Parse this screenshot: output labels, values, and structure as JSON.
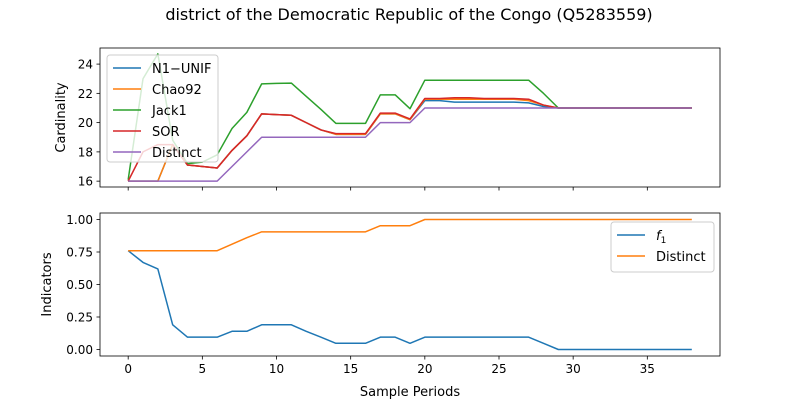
{
  "figure": {
    "title": "district of the Democratic Republic of the Congo (Q5283559)"
  },
  "chart_data": [
    {
      "type": "line",
      "xlabel": "",
      "ylabel": "Cardinality",
      "xlim": [
        -1.9,
        39.9
      ],
      "ylim": [
        15.6,
        25.1
      ],
      "xticks": [
        0,
        5,
        10,
        15,
        20,
        25,
        30,
        35
      ],
      "xtick_labels_visible": false,
      "yticks": [
        16,
        18,
        20,
        22,
        24
      ],
      "ytick_labels": [
        "16",
        "18",
        "20",
        "22",
        "24"
      ],
      "legend": "upper-left",
      "grid": false,
      "x": [
        0,
        1,
        2,
        3,
        4,
        5,
        6,
        7,
        8,
        9,
        10,
        11,
        12,
        13,
        14,
        15,
        16,
        17,
        18,
        19,
        20,
        21,
        22,
        23,
        24,
        25,
        26,
        27,
        28,
        29,
        30,
        31,
        32,
        33,
        34,
        35,
        36,
        37,
        38
      ],
      "series": [
        {
          "name": "N1−UNIF",
          "color": "#1f77b4",
          "values": [
            16,
            16,
            16,
            18.5,
            17.1,
            17.0,
            16.9,
            18.1,
            19.1,
            20.6,
            20.55,
            20.5,
            20.0,
            19.5,
            19.2,
            19.2,
            19.2,
            20.6,
            20.6,
            20.2,
            21.5,
            21.5,
            21.4,
            21.4,
            21.4,
            21.4,
            21.4,
            21.35,
            21.1,
            21.0,
            21.0,
            21.0,
            21.0,
            21.0,
            21.0,
            21.0,
            21.0,
            21.0,
            21.0
          ]
        },
        {
          "name": "Chao92",
          "color": "#ff7f0e",
          "values": [
            16,
            16,
            16,
            18.5,
            17.1,
            17.0,
            16.9,
            18.1,
            19.1,
            20.6,
            20.55,
            20.5,
            20.0,
            19.5,
            19.2,
            19.2,
            19.2,
            20.6,
            20.6,
            20.2,
            21.6,
            21.6,
            21.6,
            21.6,
            21.6,
            21.6,
            21.6,
            21.5,
            21.2,
            21.0,
            21.0,
            21.0,
            21.0,
            21.0,
            21.0,
            21.0,
            21.0,
            21.0,
            21.0
          ]
        },
        {
          "name": "Jack1",
          "color": "#2ca02c",
          "values": [
            16.1,
            23.0,
            24.7,
            18.8,
            17.2,
            17.3,
            17.8,
            19.6,
            20.7,
            22.65,
            22.68,
            22.7,
            21.8,
            20.9,
            19.95,
            19.95,
            19.95,
            21.9,
            21.9,
            20.95,
            22.9,
            22.9,
            22.9,
            22.9,
            22.9,
            22.9,
            22.9,
            22.9,
            22.0,
            21.0,
            21.0,
            21.0,
            21.0,
            21.0,
            21.0,
            21.0,
            21.0,
            21.0,
            21.0
          ]
        },
        {
          "name": "SOR",
          "color": "#d62728",
          "values": [
            16,
            18.0,
            18.5,
            18.5,
            17.1,
            17.0,
            16.9,
            18.1,
            19.1,
            20.6,
            20.55,
            20.5,
            20.0,
            19.5,
            19.25,
            19.25,
            19.25,
            20.65,
            20.65,
            20.25,
            21.65,
            21.65,
            21.7,
            21.7,
            21.65,
            21.65,
            21.65,
            21.6,
            21.2,
            21.0,
            21.0,
            21.0,
            21.0,
            21.0,
            21.0,
            21.0,
            21.0,
            21.0,
            21.0
          ]
        },
        {
          "name": "Distinct",
          "color": "#9467bd",
          "values": [
            16,
            16,
            16,
            16,
            16,
            16,
            16,
            17,
            18,
            19,
            19,
            19,
            19,
            19,
            19,
            19,
            19,
            20,
            20,
            20,
            21,
            21,
            21,
            21,
            21,
            21,
            21,
            21,
            21,
            21,
            21,
            21,
            21,
            21,
            21,
            21,
            21,
            21,
            21
          ]
        }
      ]
    },
    {
      "type": "line",
      "xlabel": "Sample Periods",
      "ylabel": "Indicators",
      "xlim": [
        -1.9,
        39.9
      ],
      "ylim": [
        -0.05,
        1.05
      ],
      "xticks": [
        0,
        5,
        10,
        15,
        20,
        25,
        30,
        35
      ],
      "xtick_labels": [
        "0",
        "5",
        "10",
        "15",
        "20",
        "25",
        "30",
        "35"
      ],
      "yticks": [
        0.0,
        0.25,
        0.5,
        0.75,
        1.0
      ],
      "ytick_labels": [
        "0.00",
        "0.25",
        "0.50",
        "0.75",
        "1.00"
      ],
      "legend": "upper-right",
      "grid": false,
      "x": [
        0,
        1,
        2,
        3,
        4,
        5,
        6,
        7,
        8,
        9,
        10,
        11,
        12,
        13,
        14,
        15,
        16,
        17,
        18,
        19,
        20,
        21,
        22,
        23,
        24,
        25,
        26,
        27,
        28,
        29,
        30,
        31,
        32,
        33,
        34,
        35,
        36,
        37,
        38
      ],
      "series": [
        {
          "name": "f",
          "name_subscript": "1",
          "color": "#1f77b4",
          "values": [
            0.76,
            0.67,
            0.62,
            0.19,
            0.095,
            0.095,
            0.095,
            0.14,
            0.14,
            0.19,
            0.19,
            0.19,
            0.14,
            0.095,
            0.048,
            0.048,
            0.048,
            0.095,
            0.095,
            0.048,
            0.095,
            0.095,
            0.095,
            0.095,
            0.095,
            0.095,
            0.095,
            0.095,
            0.048,
            0,
            0,
            0,
            0,
            0,
            0,
            0,
            0,
            0,
            0
          ]
        },
        {
          "name": "Distinct",
          "color": "#ff7f0e",
          "values": [
            0.76,
            0.76,
            0.76,
            0.76,
            0.76,
            0.76,
            0.76,
            0.81,
            0.86,
            0.905,
            0.905,
            0.905,
            0.905,
            0.905,
            0.905,
            0.905,
            0.905,
            0.952,
            0.952,
            0.952,
            1,
            1,
            1,
            1,
            1,
            1,
            1,
            1,
            1,
            1,
            1,
            1,
            1,
            1,
            1,
            1,
            1,
            1,
            1
          ]
        }
      ]
    }
  ]
}
